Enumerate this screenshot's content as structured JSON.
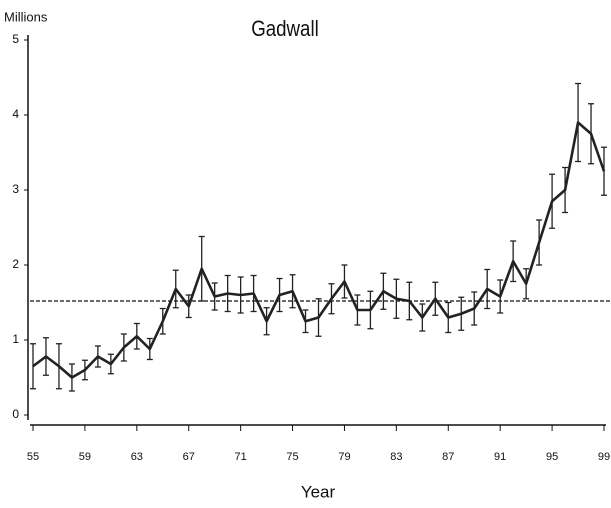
{
  "chart_data": {
    "type": "line",
    "title": "Gadwall",
    "y_label": "Millions",
    "x_label": "Year",
    "x": [
      55,
      56,
      57,
      58,
      59,
      60,
      61,
      62,
      63,
      64,
      65,
      66,
      67,
      68,
      69,
      70,
      71,
      72,
      73,
      74,
      75,
      76,
      77,
      78,
      79,
      80,
      81,
      82,
      83,
      84,
      85,
      86,
      87,
      88,
      89,
      90,
      91,
      92,
      93,
      94,
      95,
      96,
      97,
      98,
      99
    ],
    "series": [
      {
        "color": "#222222",
        "values": [
          0.65,
          0.78,
          0.65,
          0.5,
          0.6,
          0.78,
          0.68,
          0.9,
          1.05,
          0.88,
          1.25,
          1.68,
          1.45,
          1.95,
          1.58,
          1.62,
          1.6,
          1.62,
          1.25,
          1.6,
          1.65,
          1.25,
          1.3,
          1.55,
          1.78,
          1.4,
          1.4,
          1.65,
          1.55,
          1.52,
          1.3,
          1.55,
          1.3,
          1.35,
          1.42,
          1.68,
          1.58,
          2.05,
          1.75,
          2.3,
          2.85,
          3.0,
          3.9,
          3.75,
          3.25
        ],
        "errors": [
          0.3,
          0.25,
          0.3,
          0.18,
          0.13,
          0.14,
          0.13,
          0.18,
          0.17,
          0.14,
          0.17,
          0.25,
          0.15,
          0.43,
          0.18,
          0.24,
          0.24,
          0.24,
          0.18,
          0.22,
          0.22,
          0.15,
          0.25,
          0.2,
          0.22,
          0.2,
          0.25,
          0.24,
          0.26,
          0.25,
          0.18,
          0.22,
          0.2,
          0.22,
          0.22,
          0.26,
          0.22,
          0.27,
          0.2,
          0.3,
          0.36,
          0.3,
          0.52,
          0.4,
          0.32
        ]
      }
    ],
    "reference_line": 1.52,
    "xlim": [
      55,
      99
    ],
    "xticks": [
      55,
      59,
      63,
      67,
      71,
      75,
      79,
      83,
      87,
      91,
      95,
      99
    ],
    "ylim": [
      0,
      5
    ],
    "yticks": [
      0,
      1,
      2,
      3,
      4,
      5
    ]
  }
}
